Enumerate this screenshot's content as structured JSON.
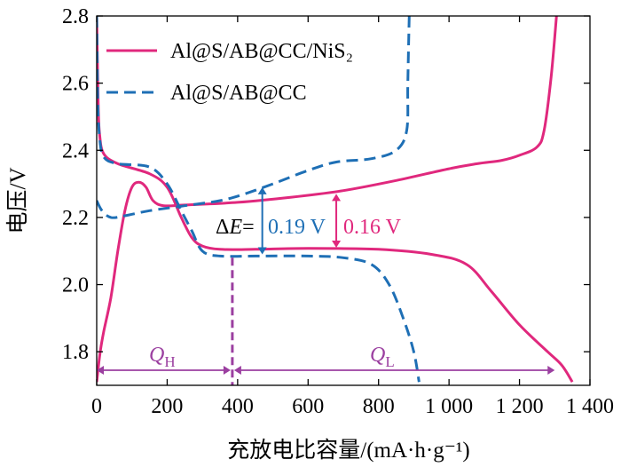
{
  "chart_data": {
    "type": "line",
    "xlabel": "充放电比容量/(mA·h·g⁻¹)",
    "ylabel": "电压/V",
    "xlim": [
      0,
      1400
    ],
    "ylim": [
      1.7,
      2.8
    ],
    "xticks": [
      {
        "value": 0,
        "label": "0"
      },
      {
        "value": 200,
        "label": "200"
      },
      {
        "value": 400,
        "label": "400"
      },
      {
        "value": 600,
        "label": "600"
      },
      {
        "value": 800,
        "label": "800"
      },
      {
        "value": 1000,
        "label": "1 000"
      },
      {
        "value": 1200,
        "label": "1 200"
      },
      {
        "value": 1400,
        "label": "1 400"
      }
    ],
    "yticks": [
      {
        "value": 1.8,
        "label": "1.8"
      },
      {
        "value": 2.0,
        "label": "2.0"
      },
      {
        "value": 2.2,
        "label": "2.2"
      },
      {
        "value": 2.4,
        "label": "2.4"
      },
      {
        "value": 2.6,
        "label": "2.6"
      },
      {
        "value": 2.8,
        "label": "2.8"
      }
    ],
    "grid": false,
    "legend_position": "top-left",
    "series": [
      {
        "name": "Al@S/AB@CC/NiS₂",
        "color": "#e0287d",
        "style": "solid",
        "discharge": [
          [
            0,
            2.8
          ],
          [
            4,
            2.55
          ],
          [
            8,
            2.45
          ],
          [
            20,
            2.39
          ],
          [
            60,
            2.36
          ],
          [
            150,
            2.33
          ],
          [
            200,
            2.29
          ],
          [
            240,
            2.2
          ],
          [
            270,
            2.14
          ],
          [
            300,
            2.115
          ],
          [
            350,
            2.105
          ],
          [
            450,
            2.105
          ],
          [
            600,
            2.108
          ],
          [
            800,
            2.105
          ],
          [
            950,
            2.09
          ],
          [
            1050,
            2.06
          ],
          [
            1120,
            1.98
          ],
          [
            1200,
            1.88
          ],
          [
            1280,
            1.8
          ],
          [
            1320,
            1.76
          ],
          [
            1350,
            1.71
          ]
        ],
        "charge": [
          [
            0,
            1.71
          ],
          [
            10,
            1.8
          ],
          [
            20,
            1.86
          ],
          [
            40,
            1.96
          ],
          [
            60,
            2.1
          ],
          [
            80,
            2.22
          ],
          [
            100,
            2.29
          ],
          [
            120,
            2.305
          ],
          [
            140,
            2.29
          ],
          [
            160,
            2.25
          ],
          [
            190,
            2.235
          ],
          [
            250,
            2.237
          ],
          [
            400,
            2.245
          ],
          [
            550,
            2.26
          ],
          [
            700,
            2.28
          ],
          [
            850,
            2.31
          ],
          [
            1000,
            2.345
          ],
          [
            1080,
            2.36
          ],
          [
            1150,
            2.37
          ],
          [
            1200,
            2.385
          ],
          [
            1250,
            2.41
          ],
          [
            1270,
            2.46
          ],
          [
            1290,
            2.62
          ],
          [
            1305,
            2.8
          ]
        ]
      },
      {
        "name": "Al@S/AB@CC",
        "color": "#1e6fb5",
        "style": "dashed",
        "discharge": [
          [
            0,
            2.8
          ],
          [
            3,
            2.55
          ],
          [
            8,
            2.44
          ],
          [
            20,
            2.38
          ],
          [
            60,
            2.36
          ],
          [
            150,
            2.35
          ],
          [
            200,
            2.3
          ],
          [
            240,
            2.22
          ],
          [
            270,
            2.16
          ],
          [
            300,
            2.1
          ],
          [
            350,
            2.085
          ],
          [
            450,
            2.085
          ],
          [
            600,
            2.085
          ],
          [
            700,
            2.08
          ],
          [
            780,
            2.06
          ],
          [
            830,
            2.0
          ],
          [
            870,
            1.9
          ],
          [
            900,
            1.8
          ],
          [
            915,
            1.71
          ]
        ],
        "charge": [
          [
            0,
            2.25
          ],
          [
            15,
            2.22
          ],
          [
            40,
            2.2
          ],
          [
            80,
            2.205
          ],
          [
            150,
            2.22
          ],
          [
            250,
            2.235
          ],
          [
            350,
            2.25
          ],
          [
            420,
            2.27
          ],
          [
            500,
            2.3
          ],
          [
            600,
            2.34
          ],
          [
            680,
            2.365
          ],
          [
            780,
            2.375
          ],
          [
            850,
            2.4
          ],
          [
            880,
            2.46
          ],
          [
            883,
            2.6
          ],
          [
            887,
            2.8
          ]
        ]
      }
    ],
    "annotations": {
      "delta_prefix": "Δ",
      "delta_var": "E",
      "delta_equals": "=",
      "delta_blue_label": "0.19 V",
      "delta_pink_label": "0.16 V",
      "delta_blue_x": 470,
      "delta_blue_range": [
        2.09,
        2.29
      ],
      "delta_pink_x": 680,
      "delta_pink_range": [
        2.11,
        2.27
      ],
      "qh_var": "Q",
      "qh_sub": "H",
      "ql_var": "Q",
      "ql_sub": "L",
      "q_arrow_y": 1.745,
      "q_split_x": 385,
      "q_start_x": 0,
      "q_end_x": 1300,
      "split_line_top_y": 2.08,
      "arrow_color": "#9b3fa0",
      "blue_color": "#1e6fb5",
      "pink_color": "#e0287d"
    }
  }
}
